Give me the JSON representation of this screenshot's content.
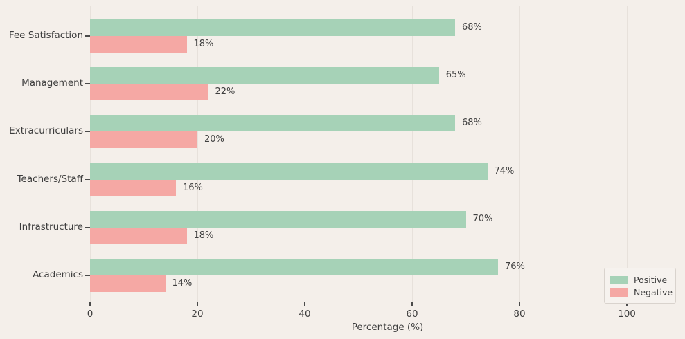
{
  "chart_data": {
    "type": "bar",
    "orientation": "horizontal",
    "title": "",
    "xlabel": "Percentage (%)",
    "ylabel": "",
    "xlim": [
      0,
      110.8
    ],
    "xticks": [
      0,
      20,
      40,
      60,
      80,
      100
    ],
    "grid": true,
    "legend_position": "lower right",
    "categories": [
      "Fee Satisfaction",
      "Management",
      "Extracurriculars",
      "Teachers/Staff",
      "Infrastructure",
      "Academics"
    ],
    "series": [
      {
        "name": "Positive",
        "color": "#a6d2b7",
        "values": [
          68,
          65,
          68,
          74,
          70,
          76
        ]
      },
      {
        "name": "Negative",
        "color": "#f5a8a4",
        "values": [
          18,
          22,
          20,
          16,
          18,
          14
        ]
      }
    ],
    "value_label_suffix": "%",
    "background_color": "#f4efea",
    "gridline_color": "#e7e1db",
    "text_color": "#3f3f3f"
  }
}
